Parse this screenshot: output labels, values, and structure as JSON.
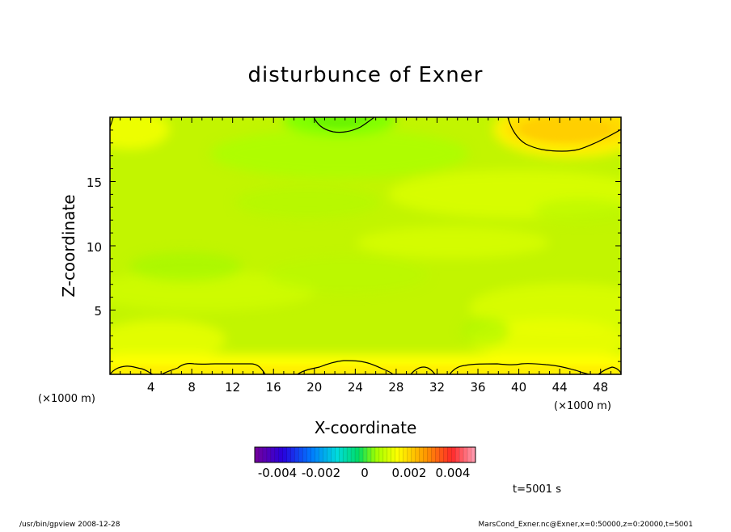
{
  "chart_data": {
    "type": "heatmap",
    "title": "disturbunce of Exner",
    "xlabel": "X-coordinate",
    "ylabel": "Z-coordinate",
    "x_unit": "(×1000 m)",
    "y_unit": "(×1000 m)",
    "xlim": [
      0,
      50
    ],
    "ylim": [
      0,
      20
    ],
    "x_ticks": [
      "4",
      "8",
      "12",
      "16",
      "20",
      "24",
      "28",
      "32",
      "36",
      "40",
      "44",
      "48"
    ],
    "y_ticks": [
      "5",
      "10",
      "15"
    ],
    "colorbar": {
      "range": [
        -0.0055,
        0.0055
      ],
      "ticks": [
        "-0.004",
        "-0.002",
        "0",
        "0.002",
        "0.004"
      ],
      "colormap": "rainbow"
    },
    "field_description_values": {
      "background": 0.0008,
      "upper_right_max": 0.0017,
      "top_center_min": -0.0003,
      "bottom_band": 0.0015
    },
    "time_label": "t=5001 s"
  },
  "footer": {
    "left": "/usr/bin/gpview  2008-12-28",
    "right": "MarsCond_Exner.nc@Exner,x=0:50000,z=0:20000,t=5001"
  },
  "colors": {
    "yellow": "#ffff00",
    "yellowgreen": "#ccff00",
    "green": "#a6ff00",
    "orange": "#ffd700"
  }
}
